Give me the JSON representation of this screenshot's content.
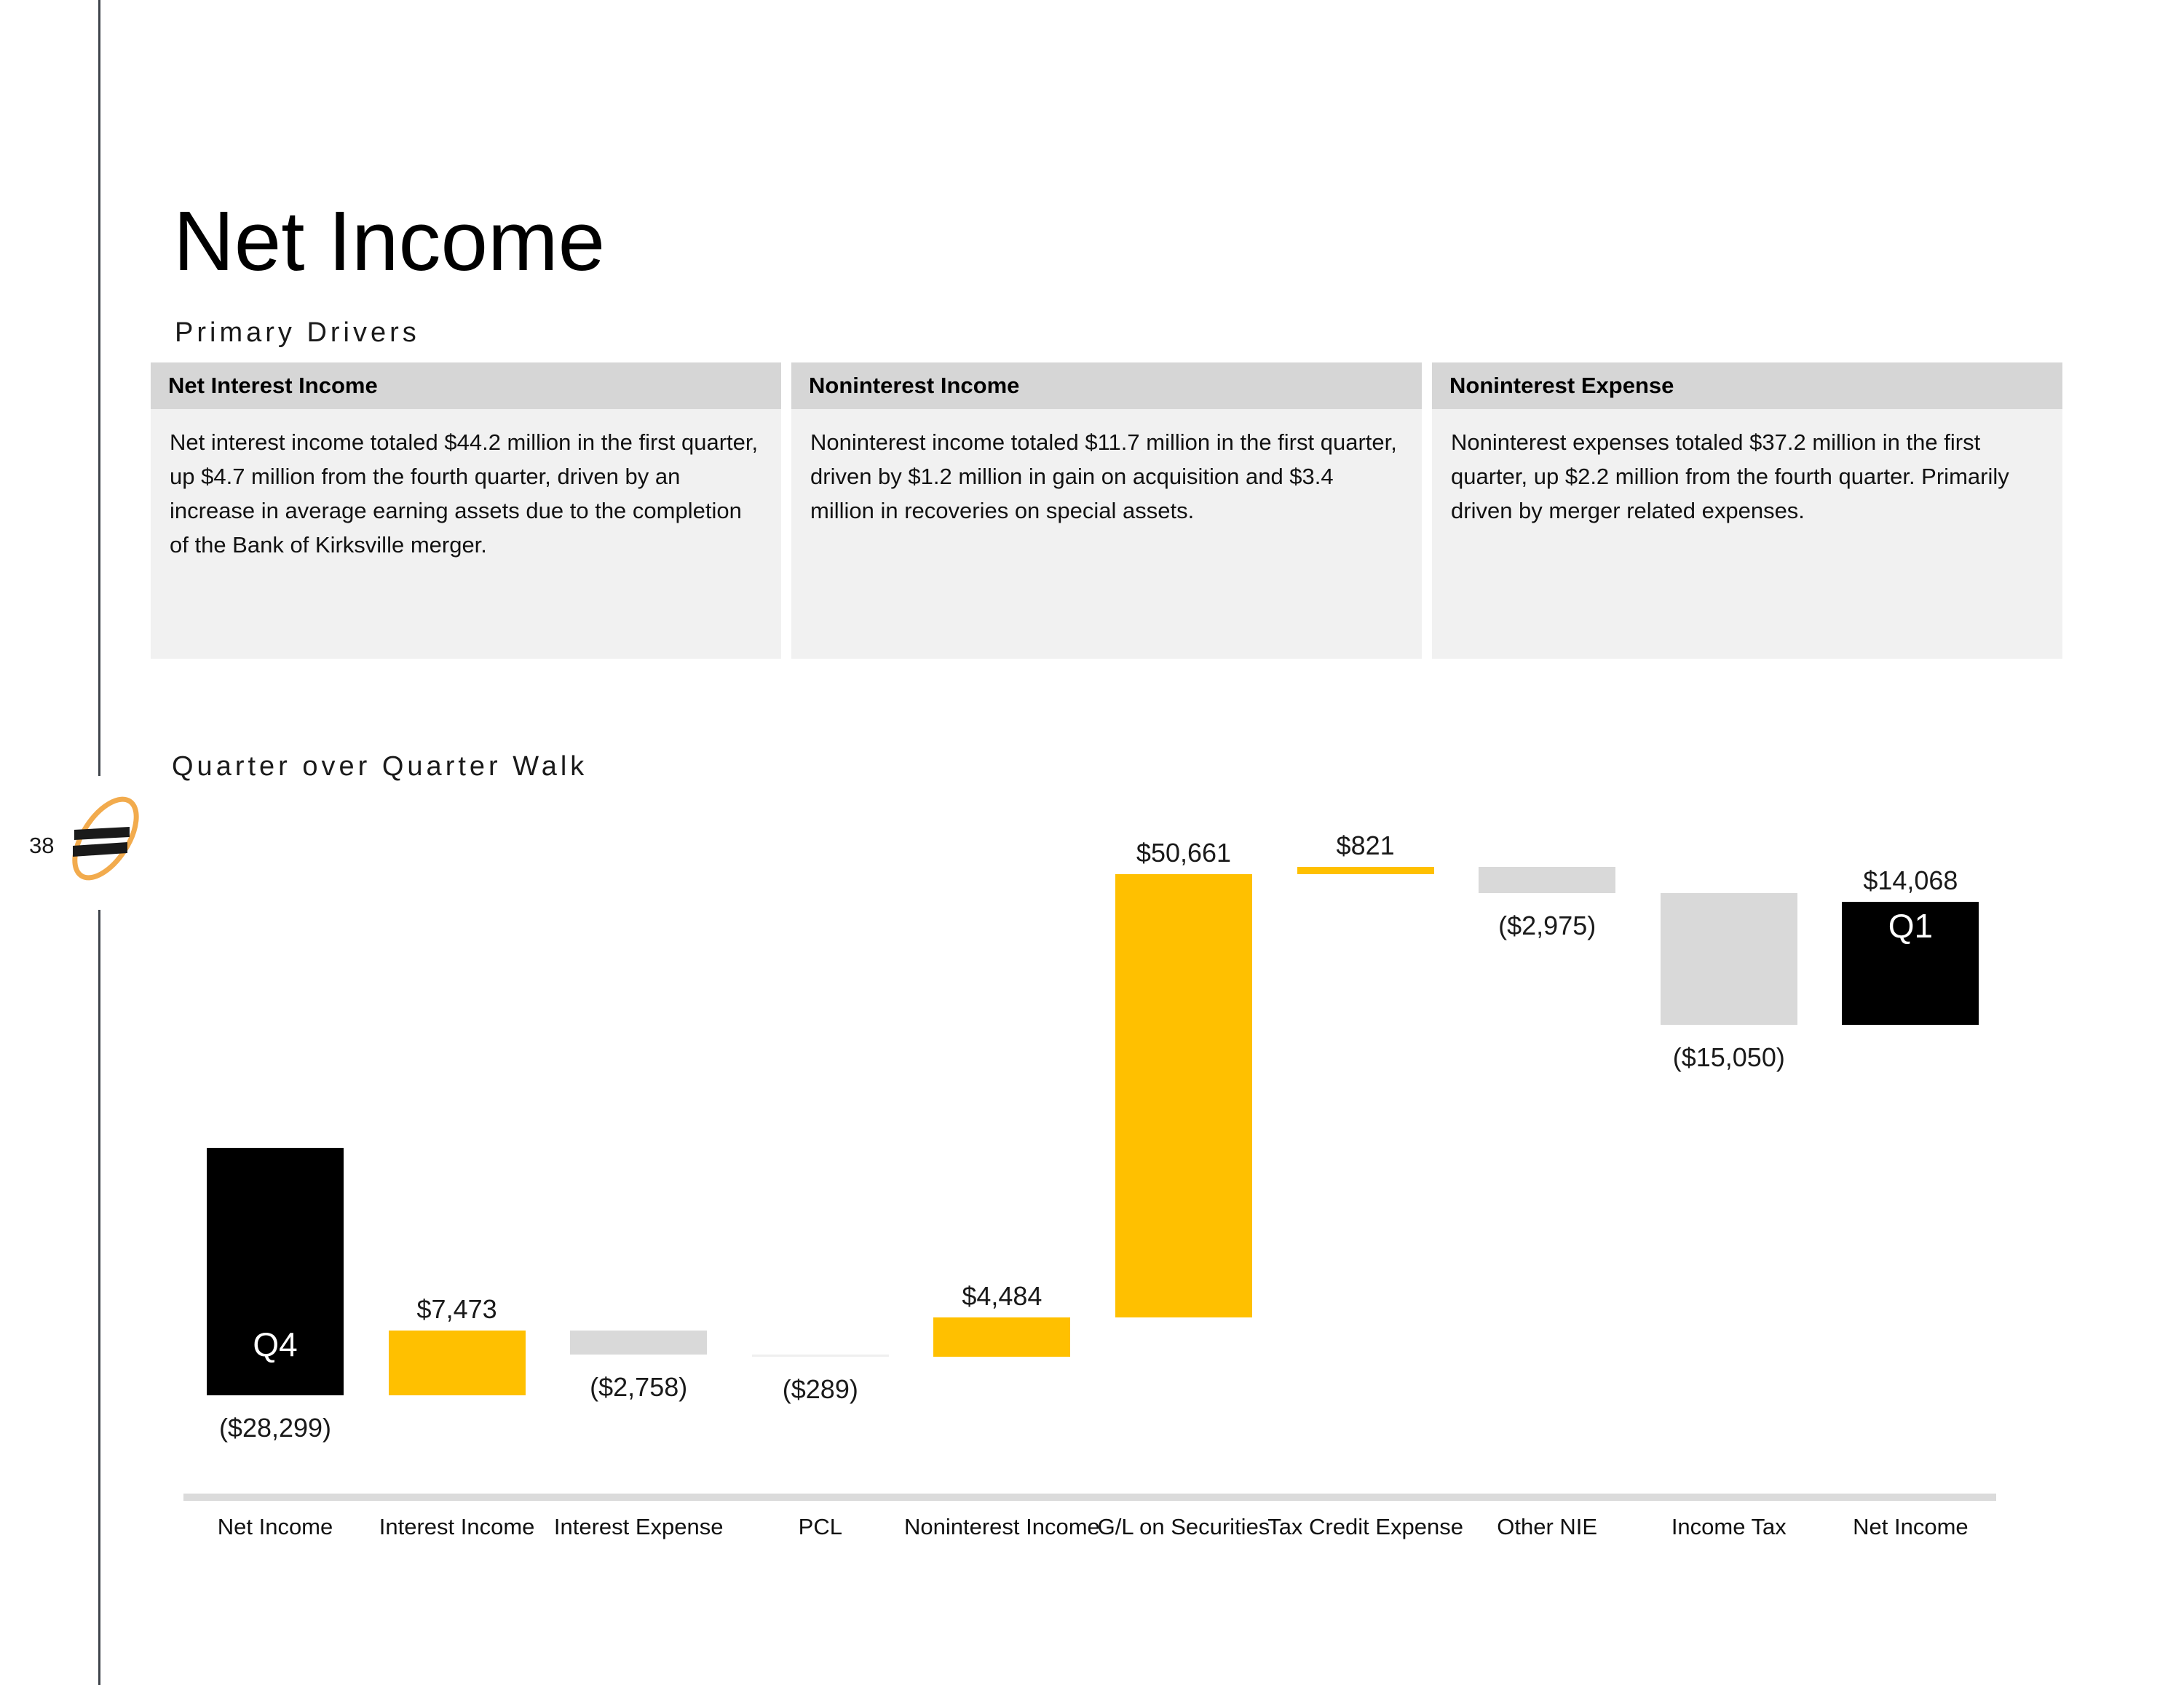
{
  "slide": {
    "page_number": "38",
    "title": "Net Income",
    "sections": {
      "primary_drivers": "Primary Drivers",
      "qoq_walk": "Quarter over Quarter Walk"
    },
    "driver_boxes": [
      {
        "header": "Net Interest Income",
        "body": "Net interest income totaled $44.2 million in the first quarter, up $4.7 million from the fourth quarter, driven by an increase in average earning assets due to the completion of the Bank of Kirksville merger."
      },
      {
        "header": "Noninterest Income",
        "body": "Noninterest income totaled $11.7 million in the first quarter, driven by $1.2 million in gain on acquisition and $3.4 million in recoveries on special assets."
      },
      {
        "header": "Noninterest Expense",
        "body": "Noninterest expenses totaled $37.2 million in the first quarter, up $2.2 million from the fourth quarter. Primarily driven by merger related expenses."
      }
    ],
    "colors": {
      "box_header_bg": "#D6D6D6",
      "box_body_bg": "#F1F1F1",
      "rule": "#3F444B",
      "logo_ring": "#F2AB4D",
      "logo_bars": "#1A1A1A"
    }
  },
  "chart_data": {
    "type": "bar",
    "subtype": "waterfall",
    "title": "Quarter over Quarter Walk",
    "categories": [
      "Net Income",
      "Interest Income",
      "Interest Expense",
      "PCL",
      "Noninterest Income",
      "G/L on Securities",
      "Tax Credit Expense",
      "Other NIE",
      "Income Tax",
      "Net Income"
    ],
    "values": [
      -28299,
      7473,
      -2758,
      -289,
      4484,
      50661,
      821,
      -2975,
      -15050,
      14068
    ],
    "bar_labels": [
      "($28,299)",
      "$7,473",
      "($2,758)",
      "($289)",
      "$4,484",
      "$50,661",
      "$821",
      "($2,975)",
      "($15,050)",
      "$14,068"
    ],
    "bar_color_roles": [
      "total",
      "increase",
      "decrease",
      "faint",
      "increase",
      "increase",
      "increase",
      "decrease",
      "decrease",
      "total"
    ],
    "inner_labels": {
      "first_bar": "Q4",
      "last_bar": "Q1"
    },
    "colors": {
      "total": "#000000",
      "increase": "#FFC000",
      "decrease": "#D9D9D9",
      "faint": "#EFEFEF",
      "axis_line": "#DBDBDB",
      "value_label": "#1A1A1A",
      "category_label": "#111111",
      "inner_label": "#FFFFFF"
    },
    "axes": {
      "y_axis_visible": false,
      "gridlines": false,
      "x_baseline_visible": true
    },
    "ylim": [
      -39500,
      36300
    ],
    "waterfall_note": "first bar falls from zero; final total bar is stacked above the previous cumulative end"
  }
}
